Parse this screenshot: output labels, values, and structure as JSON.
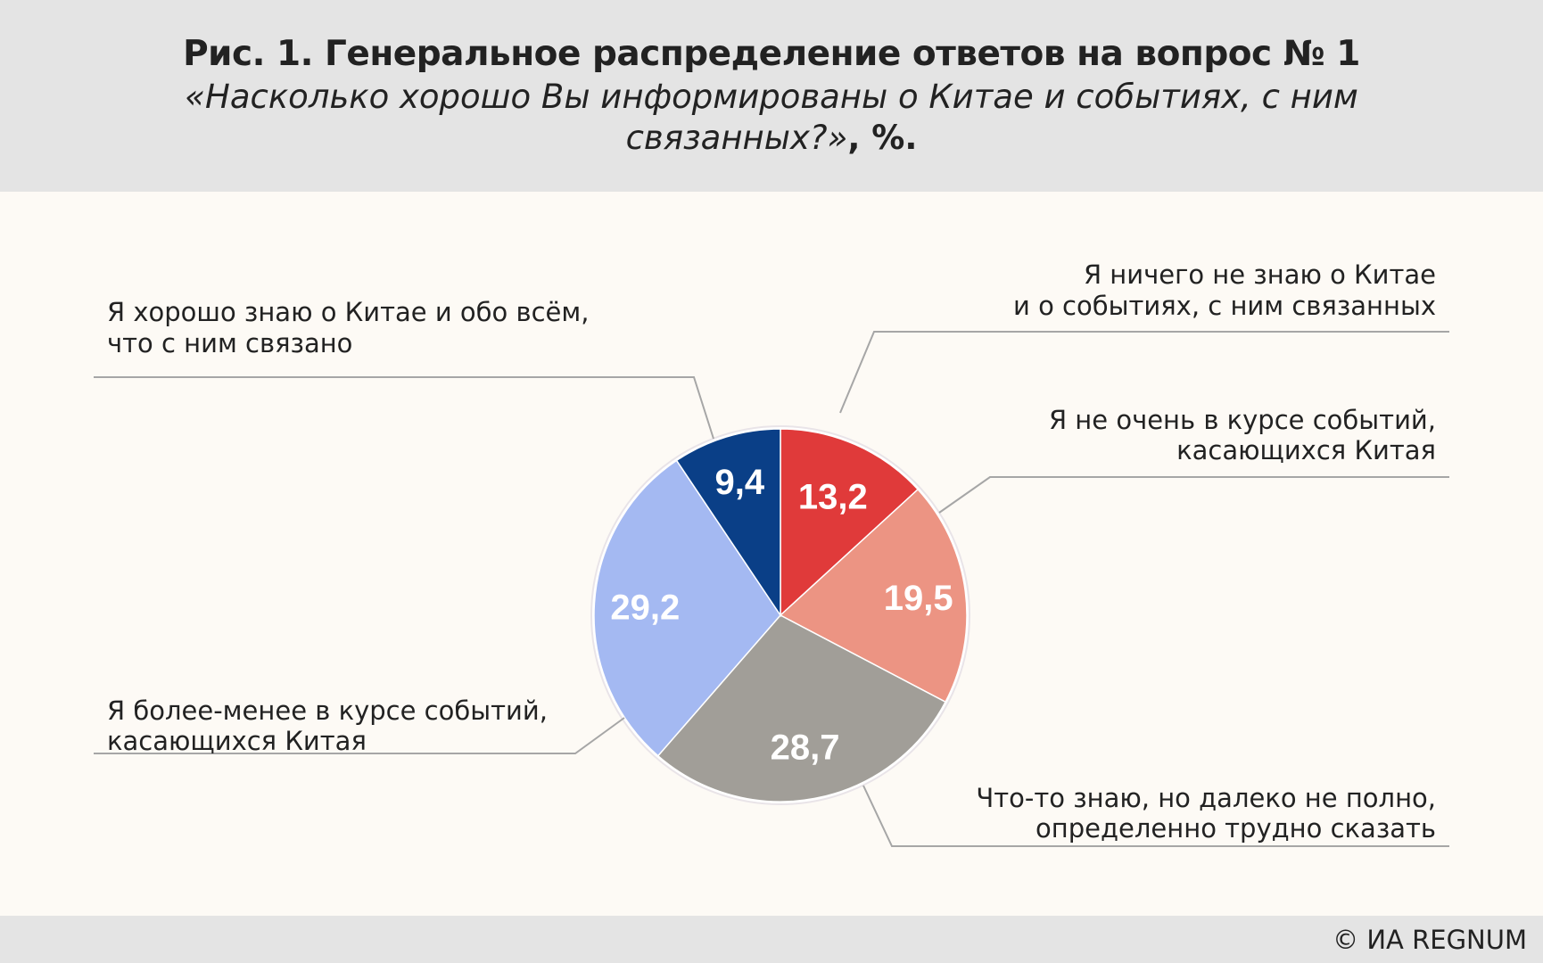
{
  "header": {
    "title": "Рис. 1. Генеральное распределение ответов на вопрос № 1",
    "subtitle_line1": "«Насколько хорошо Вы информированы о Китае и событиях, с ним",
    "subtitle_line2": "связанных?»",
    "subtitle_suffix": ", %."
  },
  "footer": {
    "copyright": "© ИА REGNUM"
  },
  "chart_data": {
    "type": "pie",
    "title": "Рис. 1. Генеральное распределение ответов на вопрос № 1",
    "start_angle": "12 o'clock",
    "direction": "clockwise",
    "slices": [
      {
        "label": [
          "Я ничего не знаю о Китае",
          "и о событиях, с ним связанных"
        ],
        "value": 13.2,
        "value_label": "13,2",
        "color": "#e03a3a"
      },
      {
        "label": [
          "Я не очень в курсе событий,",
          "касающихся Китая"
        ],
        "value": 19.5,
        "value_label": "19,5",
        "color": "#ec9483"
      },
      {
        "label": [
          "Что-то знаю, но далеко не полно,",
          "определенно трудно сказать"
        ],
        "value": 28.7,
        "value_label": "28,7",
        "color": "#a19e98"
      },
      {
        "label": [
          "Я более-менее в курсе событий,",
          "касающихся Китая"
        ],
        "value": 29.2,
        "value_label": "29,2",
        "color": "#a4b9f2"
      },
      {
        "label": [
          "Я хорошо знаю о Китае и обо всём,",
          "что с ним связано"
        ],
        "value": 9.4,
        "value_label": "9,4",
        "color": "#0a3f87"
      }
    ]
  }
}
